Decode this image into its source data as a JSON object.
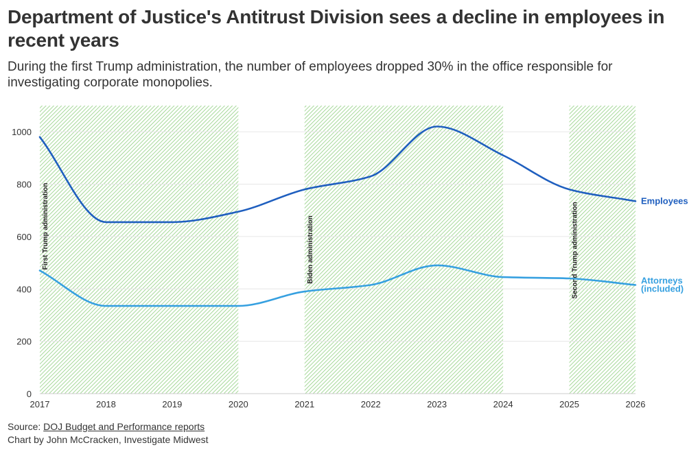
{
  "title": "Department of Justice's Antitrust Division sees a decline in employees in recent years",
  "subtitle": "During the first Trump administration, the number of employees dropped 30% in the office responsible for investigating corporate monopolies.",
  "footer": {
    "source_prefix": "Source: ",
    "source_link": "DOJ Budget and Performance reports",
    "credit": "Chart by John McCracken, Investigate Midwest"
  },
  "colors": {
    "employees": "#1f5fbf",
    "attorneys": "#36a0e0",
    "shade": "#8fcf7f"
  },
  "chart_data": {
    "type": "line",
    "title": "Department of Justice's Antitrust Division sees a decline in employees in recent years",
    "x": [
      2017,
      2018,
      2019,
      2020,
      2021,
      2022,
      2023,
      2024,
      2025,
      2026
    ],
    "xlim": [
      2017,
      2026
    ],
    "ylim": [
      0,
      1100
    ],
    "y_ticks": [
      0,
      200,
      400,
      600,
      800,
      1000
    ],
    "x_ticks": [
      2017,
      2018,
      2019,
      2020,
      2021,
      2022,
      2023,
      2024,
      2025,
      2026
    ],
    "grid": "horizontal",
    "series": [
      {
        "name": "Employees",
        "values": [
          980,
          655,
          655,
          695,
          780,
          830,
          1020,
          910,
          780,
          735
        ]
      },
      {
        "name": "Attorneys (included)",
        "values": [
          470,
          335,
          335,
          335,
          390,
          415,
          490,
          445,
          440,
          415
        ]
      }
    ],
    "shaded_periods": [
      {
        "label": "First Trump administration",
        "start": 2017,
        "end": 2020
      },
      {
        "label": "Biden administration",
        "start": 2021,
        "end": 2024
      },
      {
        "label": "Second Trump administration",
        "start": 2025,
        "end": 2026
      }
    ]
  }
}
